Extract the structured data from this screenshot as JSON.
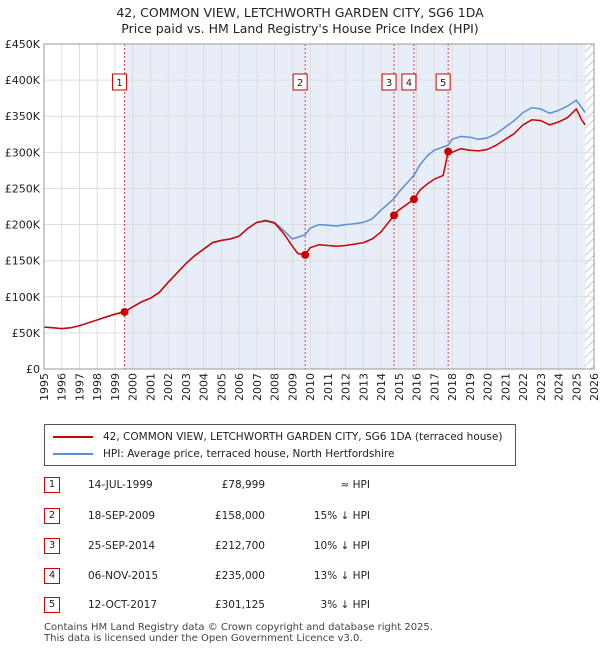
{
  "chart_data": {
    "type": "line",
    "title": "42, COMMON VIEW, LETCHWORTH GARDEN CITY, SG6 1DA",
    "subtitle": "Price paid vs. HM Land Registry's House Price Index (HPI)",
    "xlim": [
      1995,
      2026
    ],
    "ylim": [
      0,
      450000
    ],
    "xticks": [
      "1995",
      "1996",
      "1997",
      "1998",
      "1999",
      "2000",
      "2001",
      "2002",
      "2003",
      "2004",
      "2005",
      "2006",
      "2007",
      "2008",
      "2009",
      "2010",
      "2011",
      "2012",
      "2013",
      "2014",
      "2015",
      "2016",
      "2017",
      "2018",
      "2019",
      "2020",
      "2021",
      "2022",
      "2023",
      "2024",
      "2025",
      "2026"
    ],
    "yticks": [
      {
        "value": 0,
        "label": "£0"
      },
      {
        "value": 50000,
        "label": "£50K"
      },
      {
        "value": 100000,
        "label": "£100K"
      },
      {
        "value": 150000,
        "label": "£150K"
      },
      {
        "value": 200000,
        "label": "£200K"
      },
      {
        "value": 250000,
        "label": "£250K"
      },
      {
        "value": 300000,
        "label": "£300K"
      },
      {
        "value": 350000,
        "label": "£350K"
      },
      {
        "value": 400000,
        "label": "£400K"
      },
      {
        "value": 450000,
        "label": "£450K"
      }
    ],
    "series": [
      {
        "name": "42, COMMON VIEW, LETCHWORTH GARDEN CITY, SG6 1DA (terraced house)",
        "color": "#cc0000",
        "points": [
          [
            1995.0,
            58000
          ],
          [
            1995.5,
            57000
          ],
          [
            1996.0,
            56000
          ],
          [
            1996.5,
            57000
          ],
          [
            1997.0,
            60000
          ],
          [
            1997.5,
            64000
          ],
          [
            1998.0,
            68000
          ],
          [
            1998.5,
            72000
          ],
          [
            1999.0,
            76000
          ],
          [
            1999.54,
            78999
          ],
          [
            2000.0,
            86000
          ],
          [
            2000.5,
            93000
          ],
          [
            2001.0,
            98000
          ],
          [
            2001.5,
            106000
          ],
          [
            2002.0,
            120000
          ],
          [
            2002.5,
            133000
          ],
          [
            2003.0,
            146000
          ],
          [
            2003.5,
            157000
          ],
          [
            2004.0,
            166000
          ],
          [
            2004.5,
            175000
          ],
          [
            2005.0,
            178000
          ],
          [
            2005.5,
            180000
          ],
          [
            2006.0,
            184000
          ],
          [
            2006.5,
            195000
          ],
          [
            2007.0,
            203000
          ],
          [
            2007.5,
            205000
          ],
          [
            2008.0,
            202000
          ],
          [
            2008.5,
            188000
          ],
          [
            2009.0,
            170000
          ],
          [
            2009.3,
            160000
          ],
          [
            2009.72,
            158000
          ],
          [
            2010.0,
            168000
          ],
          [
            2010.5,
            172000
          ],
          [
            2011.0,
            171000
          ],
          [
            2011.5,
            170000
          ],
          [
            2012.0,
            171000
          ],
          [
            2012.5,
            173000
          ],
          [
            2013.0,
            175000
          ],
          [
            2013.5,
            180000
          ],
          [
            2014.0,
            190000
          ],
          [
            2014.73,
            212700
          ],
          [
            2015.0,
            220000
          ],
          [
            2015.85,
            235000
          ],
          [
            2016.2,
            248000
          ],
          [
            2016.6,
            256000
          ],
          [
            2017.0,
            263000
          ],
          [
            2017.5,
            268000
          ],
          [
            2017.78,
            301125
          ],
          [
            2018.0,
            300000
          ],
          [
            2018.5,
            305000
          ],
          [
            2019.0,
            303000
          ],
          [
            2019.5,
            302000
          ],
          [
            2020.0,
            304000
          ],
          [
            2020.5,
            310000
          ],
          [
            2021.0,
            318000
          ],
          [
            2021.5,
            326000
          ],
          [
            2022.0,
            338000
          ],
          [
            2022.5,
            345000
          ],
          [
            2023.0,
            344000
          ],
          [
            2023.5,
            338000
          ],
          [
            2024.0,
            342000
          ],
          [
            2024.5,
            348000
          ],
          [
            2025.0,
            360000
          ],
          [
            2025.3,
            345000
          ],
          [
            2025.5,
            338000
          ]
        ]
      },
      {
        "name": "HPI: Average price, terraced house, North Hertfordshire",
        "color": "#5b8fd4",
        "points": [
          [
            1995.0,
            58000
          ],
          [
            1995.5,
            57000
          ],
          [
            1996.0,
            56000
          ],
          [
            1996.5,
            57000
          ],
          [
            1997.0,
            60000
          ],
          [
            1997.5,
            64000
          ],
          [
            1998.0,
            68000
          ],
          [
            1998.5,
            72000
          ],
          [
            1999.0,
            76000
          ],
          [
            1999.54,
            79000
          ],
          [
            2000.0,
            86000
          ],
          [
            2000.5,
            93000
          ],
          [
            2001.0,
            98000
          ],
          [
            2001.5,
            106000
          ],
          [
            2002.0,
            120000
          ],
          [
            2002.5,
            133000
          ],
          [
            2003.0,
            146000
          ],
          [
            2003.5,
            157000
          ],
          [
            2004.0,
            166000
          ],
          [
            2004.5,
            175000
          ],
          [
            2005.0,
            178000
          ],
          [
            2005.5,
            180000
          ],
          [
            2006.0,
            184000
          ],
          [
            2006.5,
            195000
          ],
          [
            2007.0,
            203000
          ],
          [
            2007.5,
            206000
          ],
          [
            2008.0,
            203000
          ],
          [
            2008.5,
            192000
          ],
          [
            2009.0,
            180000
          ],
          [
            2009.72,
            186000
          ],
          [
            2010.0,
            195000
          ],
          [
            2010.5,
            200000
          ],
          [
            2011.0,
            199000
          ],
          [
            2011.5,
            198000
          ],
          [
            2012.0,
            200000
          ],
          [
            2012.5,
            201000
          ],
          [
            2013.0,
            203000
          ],
          [
            2013.5,
            208000
          ],
          [
            2014.0,
            220000
          ],
          [
            2014.73,
            236000
          ],
          [
            2015.0,
            245000
          ],
          [
            2015.85,
            268000
          ],
          [
            2016.2,
            283000
          ],
          [
            2016.6,
            295000
          ],
          [
            2017.0,
            303000
          ],
          [
            2017.78,
            310000
          ],
          [
            2018.0,
            318000
          ],
          [
            2018.5,
            322000
          ],
          [
            2019.0,
            321000
          ],
          [
            2019.5,
            318000
          ],
          [
            2020.0,
            320000
          ],
          [
            2020.5,
            326000
          ],
          [
            2021.0,
            335000
          ],
          [
            2021.5,
            344000
          ],
          [
            2022.0,
            355000
          ],
          [
            2022.5,
            362000
          ],
          [
            2023.0,
            360000
          ],
          [
            2023.5,
            354000
          ],
          [
            2024.0,
            358000
          ],
          [
            2024.5,
            364000
          ],
          [
            2025.0,
            372000
          ],
          [
            2025.3,
            362000
          ],
          [
            2025.5,
            355000
          ]
        ]
      }
    ],
    "sales": [
      {
        "num": "1",
        "x": 1999.54,
        "date": "14-JUL-1999",
        "price": "£78,999",
        "value": 78999,
        "hpi": "≈ HPI"
      },
      {
        "num": "2",
        "x": 2009.72,
        "date": "18-SEP-2009",
        "price": "£158,000",
        "value": 158000,
        "hpi": "15% ↓ HPI"
      },
      {
        "num": "3",
        "x": 2014.73,
        "date": "25-SEP-2014",
        "price": "£212,700",
        "value": 212700,
        "hpi": "10% ↓ HPI"
      },
      {
        "num": "4",
        "x": 2015.85,
        "date": "06-NOV-2015",
        "price": "£235,000",
        "value": 235000,
        "hpi": "13% ↓ HPI"
      },
      {
        "num": "5",
        "x": 2017.78,
        "date": "12-OCT-2017",
        "price": "£301,125",
        "value": 301125,
        "hpi": "3% ↓ HPI"
      }
    ],
    "shaded_start": 1999.54,
    "future_start": 2025.5
  },
  "legend": {
    "property_label": "42, COMMON VIEW, LETCHWORTH GARDEN CITY, SG6 1DA (terraced house)",
    "hpi_label": "HPI: Average price, terraced house, North Hertfordshire"
  },
  "footer": {
    "line1": "Contains HM Land Registry data © Crown copyright and database right 2025.",
    "line2": "This data is licensed under the Open Government Licence v3.0."
  },
  "colors": {
    "property": "#cc0000",
    "hpi": "#5b8fd4",
    "shade": "#e8eef8",
    "grid": "#dddddd"
  }
}
